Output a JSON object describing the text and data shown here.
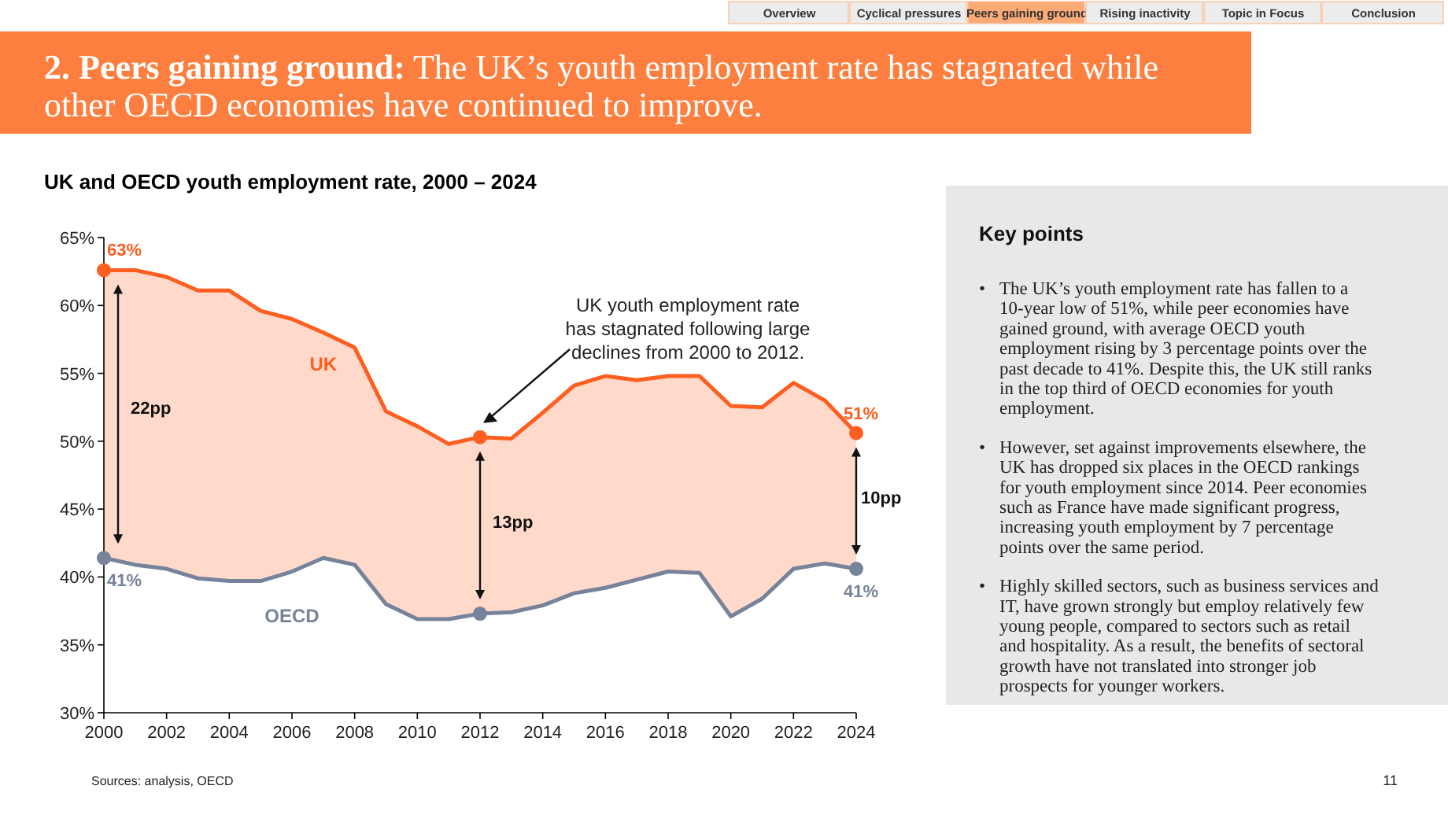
{
  "chart_data": {
    "type": "line",
    "title": "UK and OECD youth employment rate, 2000 – 2024",
    "x": [
      2000,
      2001,
      2002,
      2003,
      2004,
      2005,
      2006,
      2007,
      2008,
      2009,
      2010,
      2011,
      2012,
      2013,
      2014,
      2015,
      2016,
      2017,
      2018,
      2019,
      2020,
      2021,
      2022,
      2023,
      2024
    ],
    "series": [
      {
        "name": "UK",
        "color": "#fe5e1f",
        "values": [
          62.6,
          62.6,
          62.1,
          61.1,
          61.1,
          59.6,
          59.0,
          58.0,
          56.9,
          52.2,
          51.1,
          49.8,
          50.3,
          50.2,
          52.1,
          54.1,
          54.8,
          54.5,
          54.8,
          54.8,
          52.6,
          52.5,
          54.3,
          53.0,
          50.6
        ]
      },
      {
        "name": "OECD",
        "color": "#77839a",
        "values": [
          41.4,
          40.9,
          40.6,
          39.9,
          39.7,
          39.7,
          40.4,
          41.4,
          40.9,
          38.0,
          36.9,
          36.9,
          37.3,
          37.4,
          37.9,
          38.8,
          39.2,
          39.8,
          40.4,
          40.3,
          37.1,
          38.4,
          40.6,
          41.0,
          40.6
        ]
      },
      {
        "type": "scatter",
        "color": "#fe5e1f",
        "x": [
          2000,
          2012,
          2024
        ],
        "values": [
          62.6,
          50.3,
          50.6
        ],
        "value_labels": [
          "63%",
          null,
          "51%"
        ]
      },
      {
        "type": "scatter",
        "color": "#77839a",
        "x": [
          2000,
          2012,
          2024
        ],
        "values": [
          41.4,
          37.3,
          40.6
        ],
        "value_labels": [
          "41%",
          null,
          "41%"
        ]
      }
    ],
    "xlim": [
      2000,
      2024
    ],
    "xticks": [
      2000,
      2002,
      2004,
      2006,
      2008,
      2010,
      2012,
      2014,
      2016,
      2018,
      2020,
      2022,
      2024
    ],
    "ylim": [
      30,
      65
    ],
    "yticks": [
      {
        "value": 30,
        "label": "30%"
      },
      {
        "value": 35,
        "label": "35%"
      },
      {
        "value": 40,
        "label": "40%"
      },
      {
        "value": 45,
        "label": "45%"
      },
      {
        "value": 50,
        "label": "50%"
      },
      {
        "value": 55,
        "label": "55%"
      },
      {
        "value": 60,
        "label": "60%"
      },
      {
        "value": 65,
        "label": "65%"
      }
    ],
    "grid": false,
    "line_style": "solid",
    "annotations": [
      "Overview",
      "Cyclical pressures",
      "Peers gaining ground",
      "Rising inactivity",
      "Topic in Focus",
      "Conclusion",
      "2. Peers gaining ground: The UK’s youth employment rate has stagnated while other OECD economies have continued to improve.",
      "Key points",
      "• The UK’s youth employment rate has fallen to a 10-year low of 51%, while peer economies have gained ground, with average OECD youth employment rising by 3 percentage points over the past decade to 41%. Despite this, the UK still ranks in the top third of OECD economies for youth employment.",
      "• However, set against improvements elsewhere, the UK has dropped six places in the OECD rankings for youth employment since 2014. Peer economies such as France have made significant progress, increasing youth employment by 7 percentage points over the same period.",
      "• Highly skilled sectors, such as business services and IT, have grown strongly but employ relatively few young people, compared to sectors such as retail and hospitality. As a result, the benefits of sectoral growth have not translated into stronger job prospects for younger workers.",
      "Sources: analysis, OECD",
      "11",
      "22pp",
      "13pp",
      "10pp",
      "UK youth employment rate has stagnated following large declines from 2000 to 2012."
    ]
  }
}
